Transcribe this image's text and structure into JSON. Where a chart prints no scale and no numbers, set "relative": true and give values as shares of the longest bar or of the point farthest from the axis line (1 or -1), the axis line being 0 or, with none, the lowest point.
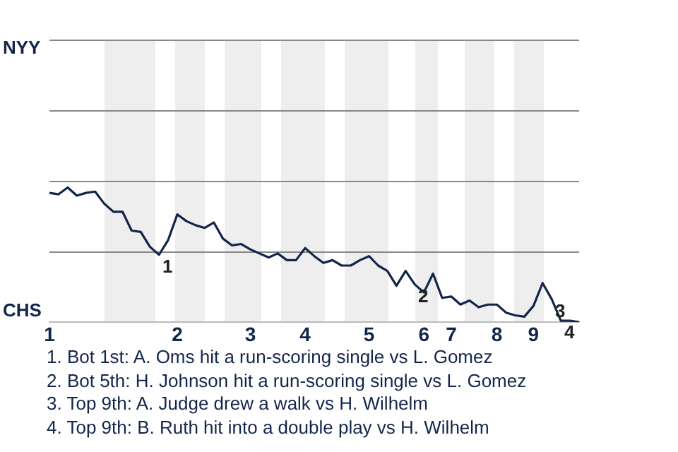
{
  "chart_data": {
    "type": "line",
    "relative": true,
    "categories": [
      "1",
      null,
      null,
      null,
      null,
      null,
      null,
      null,
      null,
      null,
      null,
      null,
      null,
      null,
      "2",
      null,
      null,
      null,
      null,
      null,
      null,
      null,
      "3",
      null,
      null,
      null,
      null,
      null,
      "4",
      null,
      null,
      null,
      null,
      null,
      null,
      "5",
      null,
      null,
      null,
      null,
      null,
      "6",
      null,
      null,
      "7",
      null,
      null,
      null,
      null,
      "8",
      null,
      null,
      null,
      "9",
      null,
      null,
      null,
      null,
      null
    ],
    "series": [
      {
        "color": "#13254a",
        "values": [
          0.96,
          0.95,
          1,
          0.94,
          0.96,
          0.97,
          0.88,
          0.82,
          0.82,
          0.68,
          0.67,
          0.56,
          0.5,
          0.61,
          0.8,
          0.75,
          0.72,
          0.7,
          0.74,
          0.62,
          0.57,
          0.58,
          0.54,
          0.51,
          0.48,
          0.51,
          0.46,
          0.46,
          0.55,
          0.49,
          0.44,
          0.46,
          0.42,
          0.42,
          0.46,
          0.49,
          0.42,
          0.38,
          0.27,
          0.38,
          0.28,
          0.22,
          0.36,
          0.18,
          0.19,
          0.13,
          0.16,
          0.11,
          0.13,
          0.13,
          0.07,
          0.05,
          0.04,
          0.12,
          0.29,
          0.17,
          0.01,
          0.01,
          0
        ]
      }
    ],
    "marker": "none",
    "line_style": "solid",
    "legend": false,
    "ref_lines": [
      {
        "axis": "y",
        "value": 0.52,
        "color": "#888888"
      },
      {
        "axis": "y",
        "value": 1.05,
        "color": "#888888"
      },
      {
        "axis": "y",
        "value": 1.57,
        "color": "#888888"
      },
      {
        "axis": "y",
        "value": 2.1,
        "color": "#888888"
      }
    ],
    "annotations": [
      {
        "text": "1",
        "y": 0.5
      },
      {
        "text": "2",
        "y": 0.28
      },
      {
        "text": "3",
        "y": 0.17
      },
      {
        "text": "4",
        "y": 0.01
      },
      "NYY",
      "CHS",
      "1. Bot 1st: A. Oms hit a run-scoring single vs L. Gomez",
      "2. Bot 5th: H. Johnson hit a run-scoring single vs L. Gomez",
      "3. Top 9th: A. Judge drew a walk vs H. Wilhelm",
      "4. Top 9th: B. Ruth hit into a double play vs H. Wilhelm"
    ]
  }
}
